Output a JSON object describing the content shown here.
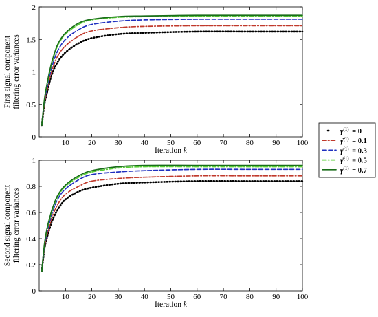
{
  "chart_data": [
    {
      "type": "line",
      "xlabel": "Iteration k",
      "ylabel": [
        "First signal component",
        "filtering error variances"
      ],
      "xlim": [
        0,
        100
      ],
      "ylim": [
        0,
        2
      ],
      "xticks": [
        "10",
        "20",
        "30",
        "40",
        "50",
        "60",
        "70",
        "80",
        "90",
        "100"
      ],
      "yticks": [
        "0",
        "0.5",
        "1",
        "1.5",
        "2"
      ],
      "grid": false,
      "series": [
        {
          "name": "γ̄(1) = 0",
          "color": "#000000",
          "dash": "dot",
          "x": [
            1,
            2,
            3,
            4,
            5,
            7,
            10,
            15,
            20,
            30,
            40,
            60,
            80,
            100
          ],
          "y": [
            0.18,
            0.5,
            0.68,
            0.85,
            0.98,
            1.15,
            1.3,
            1.44,
            1.52,
            1.58,
            1.6,
            1.62,
            1.62,
            1.62
          ]
        },
        {
          "name": "γ̄(1) = 0.1",
          "color": "#c0392b",
          "dash": "dashdot",
          "x": [
            1,
            2,
            3,
            4,
            5,
            7,
            10,
            15,
            20,
            30,
            40,
            60,
            80,
            100
          ],
          "y": [
            0.18,
            0.52,
            0.72,
            0.9,
            1.04,
            1.24,
            1.4,
            1.55,
            1.63,
            1.68,
            1.7,
            1.71,
            1.71,
            1.71
          ]
        },
        {
          "name": "γ̄(1) = 0.3",
          "color": "#1f2fbf",
          "dash": "dash",
          "x": [
            1,
            2,
            3,
            4,
            5,
            7,
            10,
            15,
            20,
            30,
            40,
            60,
            80,
            100
          ],
          "y": [
            0.18,
            0.55,
            0.76,
            0.95,
            1.1,
            1.32,
            1.5,
            1.65,
            1.73,
            1.78,
            1.8,
            1.81,
            1.81,
            1.81
          ]
        },
        {
          "name": "γ̄(1) = 0.5",
          "color": "#55cc33",
          "dash": "dashdot",
          "x": [
            1,
            2,
            3,
            4,
            5,
            7,
            10,
            15,
            20,
            30,
            40,
            60,
            80,
            100
          ],
          "y": [
            0.18,
            0.57,
            0.8,
            1.0,
            1.16,
            1.4,
            1.58,
            1.73,
            1.8,
            1.84,
            1.85,
            1.86,
            1.86,
            1.86
          ]
        },
        {
          "name": "γ̄(1) = 0.7",
          "color": "#1a6e1a",
          "dash": "solid",
          "x": [
            1,
            2,
            3,
            4,
            5,
            7,
            10,
            15,
            20,
            30,
            40,
            60,
            80,
            100
          ],
          "y": [
            0.18,
            0.58,
            0.82,
            1.02,
            1.18,
            1.42,
            1.6,
            1.75,
            1.81,
            1.85,
            1.86,
            1.87,
            1.87,
            1.87
          ]
        }
      ]
    },
    {
      "type": "line",
      "xlabel": "Iteration k",
      "ylabel": [
        "Second signal component",
        "filtering error variances"
      ],
      "xlim": [
        0,
        100
      ],
      "ylim": [
        0,
        1
      ],
      "xticks": [
        "10",
        "20",
        "30",
        "40",
        "50",
        "60",
        "70",
        "80",
        "90",
        "100"
      ],
      "yticks": [
        "0",
        "0.2",
        "0.4",
        "0.6",
        "0.8",
        "1"
      ],
      "grid": false,
      "series": [
        {
          "name": "γ̄(1) = 0",
          "color": "#000000",
          "dash": "dot",
          "x": [
            1,
            2,
            3,
            4,
            5,
            7,
            10,
            15,
            20,
            30,
            40,
            60,
            80,
            100
          ],
          "y": [
            0.15,
            0.32,
            0.41,
            0.48,
            0.54,
            0.62,
            0.7,
            0.76,
            0.79,
            0.82,
            0.83,
            0.84,
            0.84,
            0.84
          ]
        },
        {
          "name": "γ̄(1) = 0.1",
          "color": "#c0392b",
          "dash": "dashdot",
          "x": [
            1,
            2,
            3,
            4,
            5,
            7,
            10,
            15,
            20,
            30,
            40,
            60,
            80,
            100
          ],
          "y": [
            0.15,
            0.33,
            0.43,
            0.5,
            0.57,
            0.66,
            0.74,
            0.8,
            0.84,
            0.86,
            0.87,
            0.88,
            0.88,
            0.88
          ]
        },
        {
          "name": "γ̄(1) = 0.3",
          "color": "#1f2fbf",
          "dash": "dash",
          "x": [
            1,
            2,
            3,
            4,
            5,
            7,
            10,
            15,
            20,
            30,
            40,
            60,
            80,
            100
          ],
          "y": [
            0.15,
            0.34,
            0.45,
            0.53,
            0.6,
            0.7,
            0.78,
            0.85,
            0.89,
            0.91,
            0.92,
            0.93,
            0.93,
            0.93
          ]
        },
        {
          "name": "γ̄(1) = 0.5",
          "color": "#55cc33",
          "dash": "dashdot",
          "x": [
            1,
            2,
            3,
            4,
            5,
            7,
            10,
            15,
            20,
            30,
            40,
            60,
            80,
            100
          ],
          "y": [
            0.15,
            0.35,
            0.47,
            0.55,
            0.62,
            0.72,
            0.8,
            0.87,
            0.91,
            0.94,
            0.95,
            0.95,
            0.95,
            0.95
          ]
        },
        {
          "name": "γ̄(1) = 0.7",
          "color": "#1a6e1a",
          "dash": "solid",
          "x": [
            1,
            2,
            3,
            4,
            5,
            7,
            10,
            15,
            20,
            30,
            40,
            60,
            80,
            100
          ],
          "y": [
            0.15,
            0.36,
            0.48,
            0.56,
            0.63,
            0.73,
            0.81,
            0.88,
            0.92,
            0.95,
            0.96,
            0.96,
            0.96,
            0.96
          ]
        }
      ]
    }
  ],
  "legend": {
    "placement": "right",
    "entries": [
      {
        "bar": "γ̄",
        "sup": "(1)",
        "value": "= 0",
        "color": "#000000",
        "dash": "dot"
      },
      {
        "bar": "γ̄",
        "sup": "(1)",
        "value": "= 0.1",
        "color": "#c0392b",
        "dash": "dashdot"
      },
      {
        "bar": "γ̄",
        "sup": "(1)",
        "value": "= 0.3",
        "color": "#1f2fbf",
        "dash": "dash"
      },
      {
        "bar": "γ̄",
        "sup": "(1)",
        "value": "= 0.5",
        "color": "#55cc33",
        "dash": "dashdot"
      },
      {
        "bar": "γ̄",
        "sup": "(1)",
        "value": "= 0.7",
        "color": "#1a6e1a",
        "dash": "solid"
      }
    ]
  }
}
